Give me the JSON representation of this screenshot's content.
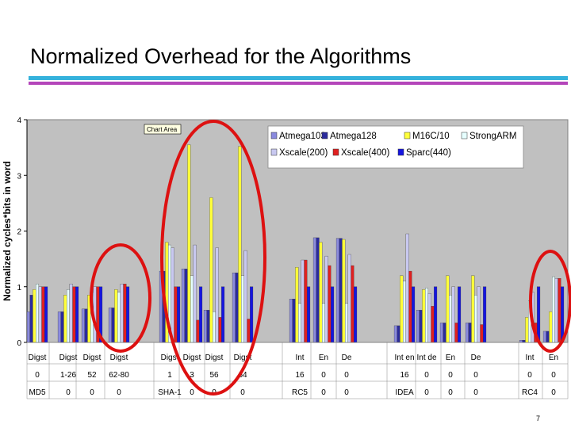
{
  "slide": {
    "title": "Normalized Overhead for the Algorithms",
    "page_number": "7"
  },
  "colors": {
    "band1": "#35b2dc",
    "band2": "#b445ba",
    "plot_bg": "#c0c0c0",
    "highlight": "#dd1111",
    "series": {
      "Atmega103": "#8a8ade",
      "Atmega128": "#2b2b9c",
      "M16C/10": "#ffff3a",
      "StrongARM": "#e6ffff",
      "Xscale(200)": "#c8c8f0",
      "Xscale(400)": "#e02020",
      "Sparc(440)": "#1515e0"
    }
  },
  "chart_data": {
    "type": "bar",
    "ylabel": "Normalized cycles*bits in word",
    "ylim": [
      0,
      4
    ],
    "yticks": [
      "0",
      "1",
      "2",
      "3",
      "4"
    ],
    "tooltip": "Chart Area",
    "legend_position": "top-right",
    "series_names": [
      "Atmega103",
      "Atmega128",
      "M16C/10",
      "StrongARM",
      "Xscale(200)",
      "Xscale(400)",
      "Sparc(440)"
    ],
    "groups": [
      {
        "row1": "Digst",
        "row2": "0",
        "row3": "MD5",
        "values": [
          0.55,
          0.85,
          0.95,
          1.05,
          1.0,
          1.0,
          1.0
        ]
      },
      {
        "row1": "Digst",
        "row2": "1-26",
        "row3": "0",
        "values": [
          0.55,
          0.55,
          0.85,
          0.95,
          1.05,
          1.0,
          1.0
        ]
      },
      {
        "row1": "Digst",
        "row2": "52",
        "row3": "0",
        "values": [
          0.6,
          0.6,
          0.85,
          0.9,
          1.0,
          1.0,
          1.0
        ]
      },
      {
        "row1": "Digst",
        "row2": "62-80",
        "row3": "0",
        "values": [
          0.62,
          0.62,
          0.95,
          0.9,
          1.05,
          1.05,
          1.0
        ]
      },
      {
        "row1": "Digst",
        "row2": "1",
        "row3": "SHA-1",
        "values": [
          1.28,
          1.28,
          1.8,
          1.75,
          1.7,
          1.0,
          1.0
        ]
      },
      {
        "row1": "Digst",
        "row2": "3",
        "row3": "0",
        "values": [
          1.32,
          1.32,
          3.55,
          1.2,
          1.75,
          0.4,
          1.0
        ]
      },
      {
        "row1": "Digst",
        "row2": "56",
        "row3": "0",
        "values": [
          0.58,
          0.58,
          2.6,
          0.55,
          1.7,
          0.45,
          1.0
        ]
      },
      {
        "row1": "Digst",
        "row2": "64",
        "row3": "0",
        "values": [
          1.25,
          1.25,
          3.52,
          1.2,
          1.65,
          0.42,
          1.0
        ]
      },
      {
        "row1": "Int",
        "row2": "16",
        "row3": "RC5",
        "values": [
          0.78,
          0.78,
          1.35,
          0.7,
          1.48,
          1.48,
          1.0
        ]
      },
      {
        "row1": "En",
        "row2": "0",
        "row3": "0",
        "values": [
          1.88,
          1.88,
          1.8,
          0.7,
          1.55,
          1.38,
          1.0
        ]
      },
      {
        "row1": "De",
        "row2": "0",
        "row3": "0",
        "values": [
          1.87,
          1.87,
          1.85,
          0.7,
          1.58,
          1.38,
          1.0
        ]
      },
      {
        "row1": "Int en",
        "row2": "16",
        "row3": "IDEA",
        "values": [
          0.3,
          0.3,
          1.2,
          1.1,
          1.95,
          1.28,
          1.0
        ]
      },
      {
        "row1": "Int de",
        "row2": "0",
        "row3": "0",
        "values": [
          0.58,
          0.58,
          0.95,
          0.98,
          0.88,
          0.65,
          1.0
        ]
      },
      {
        "row1": "En",
        "row2": "0",
        "row3": "0",
        "values": [
          0.35,
          0.35,
          1.2,
          0.85,
          1.0,
          0.35,
          1.0
        ]
      },
      {
        "row1": "De",
        "row2": "0",
        "row3": "0",
        "values": [
          0.35,
          0.35,
          1.2,
          0.85,
          1.0,
          0.32,
          1.0
        ]
      },
      {
        "row1": "Int",
        "row2": "0",
        "row3": "RC4",
        "values": [
          0.04,
          0.04,
          0.45,
          0.75,
          0.9,
          0.35,
          1.0
        ]
      },
      {
        "row1": "En",
        "row2": "0",
        "row3": "0",
        "values": [
          0.2,
          0.2,
          0.55,
          1.18,
          1.15,
          1.15,
          1.0
        ]
      }
    ],
    "annotations": [
      "red ellipse around Digst 62-80",
      "red ellipse around SHA-1 Digst 3 to Digst 64",
      "red ellipse around RC4"
    ]
  }
}
